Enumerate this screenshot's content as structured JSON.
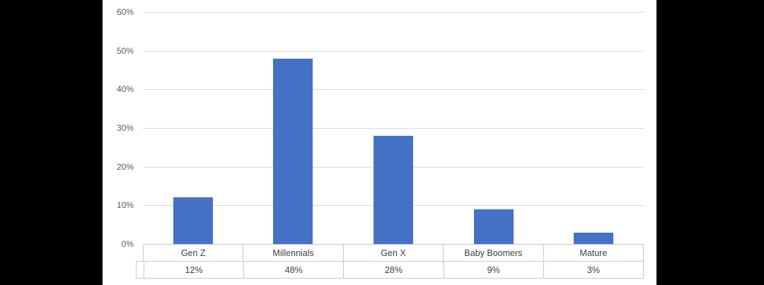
{
  "canvas": {
    "background_color": "#000000",
    "panel_background_color": "#ffffff"
  },
  "chart_data": {
    "type": "bar",
    "title": "",
    "xlabel": "",
    "ylabel": "",
    "categories": [
      "Gen Z",
      "Millennials",
      "Gen X",
      "Baby Boomers",
      "Mature"
    ],
    "series": [
      {
        "name": "",
        "values": [
          12,
          48,
          28,
          9,
          3
        ],
        "value_labels": [
          "12%",
          "48%",
          "28%",
          "9%",
          "3%"
        ]
      }
    ],
    "ylim": [
      0,
      60
    ],
    "y_tick_step": 10,
    "y_tick_labels": [
      "0%",
      "10%",
      "20%",
      "30%",
      "40%",
      "50%",
      "60%"
    ],
    "grid": "horizontal",
    "legend_position": "none",
    "has_data_table": true,
    "bar_color": "#4472c4",
    "gridline_color": "#d9d9d9",
    "table_border_color": "#c9c9c9",
    "axis_label_color": "#595959",
    "table_text_color": "#404040"
  }
}
